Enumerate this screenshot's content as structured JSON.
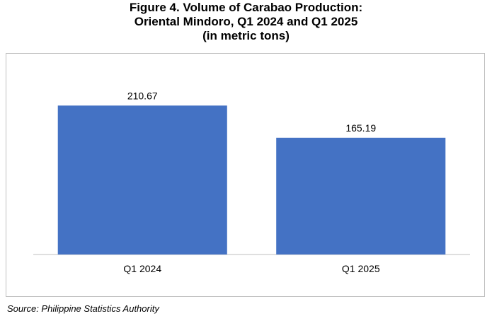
{
  "header": {
    "title_line1": "Figure 4. Volume of Carabao Production:",
    "title_line2": "Oriental Mindoro, Q1 2024 and Q1 2025",
    "title_line3": "(in metric tons)"
  },
  "chart_data": {
    "type": "bar",
    "title": "Figure 4. Volume of Carabao Production: Oriental Mindoro, Q1 2024 and Q1 2025 (in metric tons)",
    "categories": [
      "Q1 2024",
      "Q1 2025"
    ],
    "values": [
      210.67,
      165.19
    ],
    "data_labels": [
      "210.67",
      "165.19"
    ],
    "ylim": [
      0,
      250
    ],
    "grid": false,
    "legend": "none",
    "bar_color": "#4472C4"
  },
  "footer": {
    "source": "Source: Philippine Statistics Authority"
  }
}
